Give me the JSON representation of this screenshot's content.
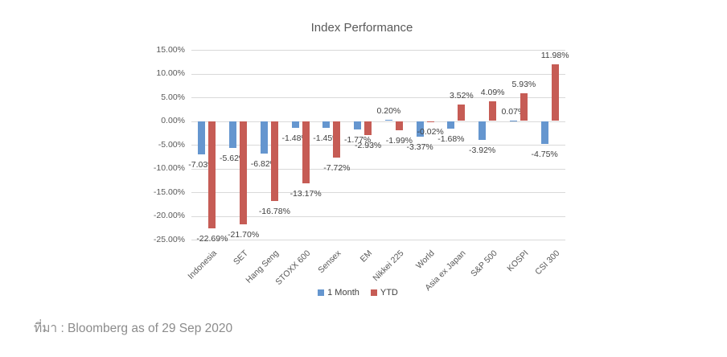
{
  "chart_data": {
    "type": "bar",
    "title": "Index Performance",
    "categories": [
      "Indonesia",
      "SET",
      "Hang Seng",
      "STOXX 600",
      "Sensex",
      "EM",
      "Nikkei 225",
      "World",
      "Asia ex Japan",
      "S&P 500",
      "KOSPI",
      "CSI 300"
    ],
    "series": [
      {
        "name": "1 Month",
        "color": "#6596cf",
        "values": [
          -7.03,
          -5.62,
          -6.82,
          -1.48,
          -1.45,
          -1.77,
          0.2,
          -3.37,
          -1.68,
          -3.92,
          0.07,
          -4.75
        ]
      },
      {
        "name": "YTD",
        "color": "#c65c55",
        "values": [
          -22.69,
          -21.7,
          -16.78,
          -13.17,
          -7.72,
          -2.93,
          -1.99,
          -0.02,
          3.52,
          4.09,
          5.93,
          11.98
        ]
      }
    ],
    "ylim": [
      -25,
      15
    ],
    "yticks": [
      15,
      10,
      5,
      0,
      -5,
      -10,
      -15,
      -20,
      -25
    ],
    "ytick_labels": [
      "15.00%",
      "10.00%",
      "5.00%",
      "0.00%",
      "-5.00%",
      "-10.00%",
      "-15.00%",
      "-20.00%",
      "-25.00%"
    ],
    "value_label_suffix": "%",
    "value_label_decimals": 2,
    "grid": true,
    "legend_position": "bottom"
  },
  "footer": {
    "text": "ที่มา : Bloomberg as of 29 Sep 2020"
  },
  "colors": {
    "grid": "#d9d9d9",
    "axis_text": "#595959",
    "value_label_text": "#3f3f3f",
    "title_text": "#595959",
    "footer_text": "#8c8c8c",
    "background": "#ffffff"
  }
}
